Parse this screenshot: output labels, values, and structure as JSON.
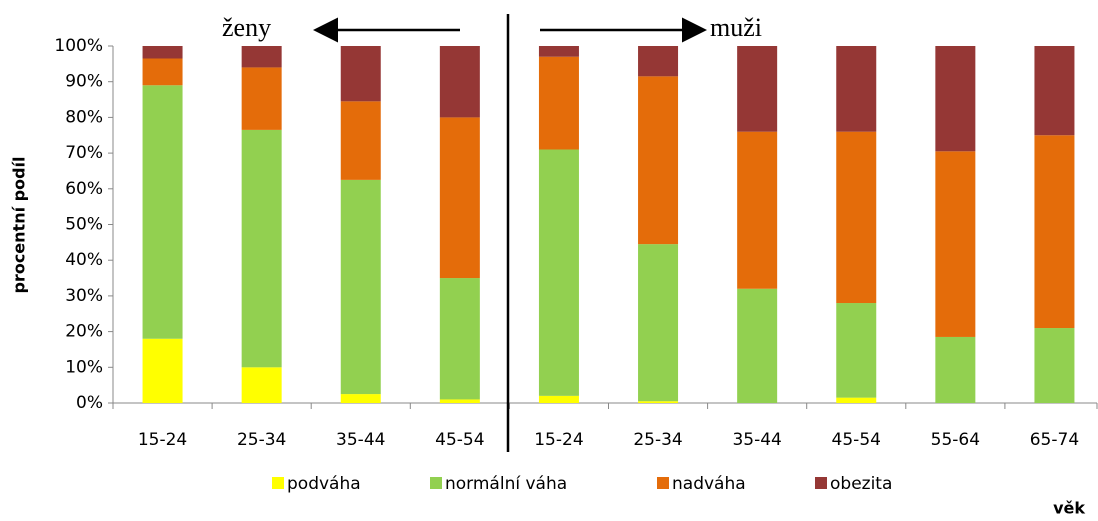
{
  "chart_data": {
    "type": "stacked_bar",
    "categories": [
      "15-24",
      "25-34",
      "35-44",
      "45-54",
      "15-24",
      "25-34",
      "35-44",
      "45-54",
      "55-64",
      "65-74"
    ],
    "series": [
      {
        "name": "podváha",
        "color": "#ffff00",
        "values": [
          18,
          10,
          2.5,
          1,
          2,
          0.5,
          0,
          1.5,
          0,
          0
        ]
      },
      {
        "name": "normální váha",
        "color": "#92d050",
        "values": [
          71,
          66.5,
          60,
          34,
          69,
          44,
          32,
          26.5,
          18.5,
          21
        ]
      },
      {
        "name": "nadváha",
        "color": "#e46c0a",
        "values": [
          7.5,
          17.5,
          22,
          45,
          26,
          47,
          44,
          48,
          52,
          54
        ]
      },
      {
        "name": "obezita",
        "color": "#953735",
        "values": [
          3.5,
          6,
          15.5,
          20,
          3,
          8.5,
          24,
          24,
          29.5,
          25
        ]
      }
    ],
    "ylim": [
      0,
      100
    ],
    "yticks": [
      {
        "value": 0,
        "label": "0%"
      },
      {
        "value": 10,
        "label": "10%"
      },
      {
        "value": 20,
        "label": "20%"
      },
      {
        "value": 30,
        "label": "30%"
      },
      {
        "value": 40,
        "label": "40%"
      },
      {
        "value": 50,
        "label": "50%"
      },
      {
        "value": 60,
        "label": "60%"
      },
      {
        "value": 70,
        "label": "70%"
      },
      {
        "value": 80,
        "label": "80%"
      },
      {
        "value": 90,
        "label": "90%"
      },
      {
        "value": 100,
        "label": "100%"
      }
    ],
    "ylabel": "procentní podíl",
    "xlabel": "věk",
    "annotations": [
      "ženy",
      "muži"
    ],
    "legend": "bottom"
  }
}
